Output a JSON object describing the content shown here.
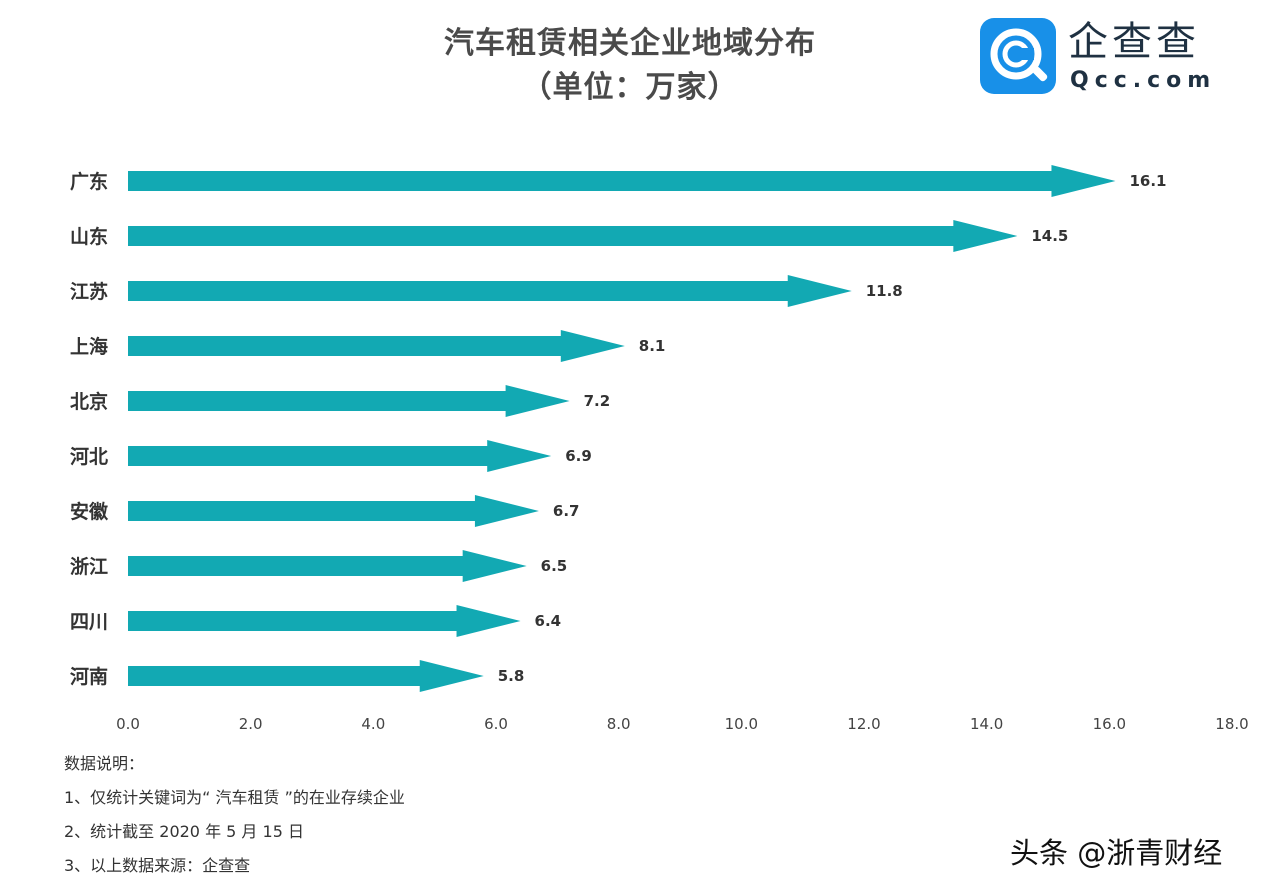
{
  "title": {
    "line1": "汽车租赁相关企业地域分布",
    "line2": "（单位：万家）"
  },
  "logo": {
    "name": "企查查",
    "domain": "Qcc.com"
  },
  "colors": {
    "bar": "#12a9b3",
    "text": "#333333",
    "brand": "#1890e8"
  },
  "chart_data": {
    "type": "bar",
    "orientation": "horizontal",
    "categories": [
      "广东",
      "山东",
      "江苏",
      "上海",
      "北京",
      "河北",
      "安徽",
      "浙江",
      "四川",
      "河南"
    ],
    "values": [
      16.1,
      14.5,
      11.8,
      8.1,
      7.2,
      6.9,
      6.7,
      6.5,
      6.4,
      5.8
    ],
    "value_labels": [
      "16.1",
      "14.5",
      "11.8",
      "8.1",
      "7.2",
      "6.9",
      "6.7",
      "6.5",
      "6.4",
      "5.8"
    ],
    "xlim": [
      0,
      18
    ],
    "xticks": [
      "0.0",
      "2.0",
      "4.0",
      "6.0",
      "8.0",
      "10.0",
      "12.0",
      "14.0",
      "16.0",
      "18.0"
    ],
    "grid": false,
    "bar_style": "arrow"
  },
  "notes": {
    "heading": "数据说明：",
    "items": [
      "1、仅统计关键词为“ 汽车租赁 ”的在业存续企业",
      "2、统计截至 2020 年 5 月 15 日",
      "3、以上数据来源：企查查"
    ]
  },
  "watermark": "头条 @浙青财经"
}
